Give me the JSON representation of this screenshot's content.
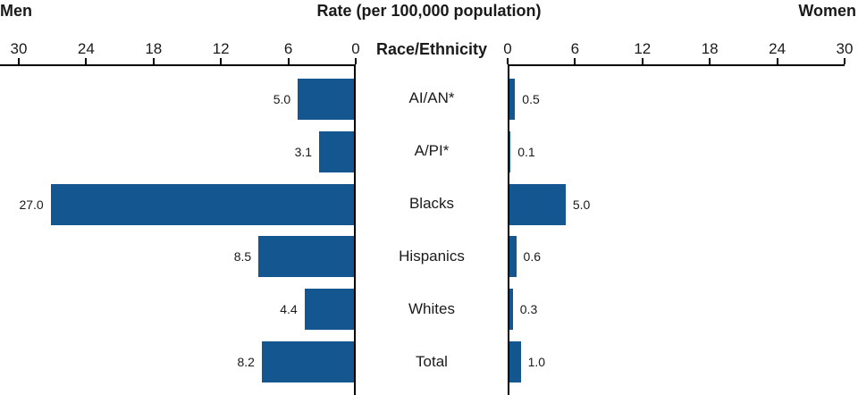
{
  "header": {
    "left": "Men",
    "title": "Rate (per 100,000 population)",
    "right": "Women"
  },
  "axis": {
    "center_label": "Race/Ethnicity",
    "left_ticks": [
      30,
      24,
      18,
      12,
      6,
      0
    ],
    "right_ticks": [
      0,
      6,
      12,
      18,
      24,
      30
    ]
  },
  "chart_data": {
    "type": "bar",
    "layout": "bilateral-horizontal",
    "title": "Rate (per 100,000 population)",
    "categories": [
      "AI/AN*",
      "A/PI*",
      "Blacks",
      "Hispanics",
      "Whites",
      "Total"
    ],
    "series": [
      {
        "name": "Men",
        "side": "left",
        "values": [
          5.0,
          3.1,
          27.0,
          8.5,
          4.4,
          8.2
        ]
      },
      {
        "name": "Women",
        "side": "right",
        "values": [
          0.5,
          0.1,
          5.0,
          0.6,
          0.3,
          1.0
        ]
      }
    ],
    "xlim": [
      0,
      30
    ],
    "tick_step": 6,
    "grid": false,
    "bar_color": "#14568f",
    "axis_color": "#000000",
    "value_decimals": 1
  }
}
